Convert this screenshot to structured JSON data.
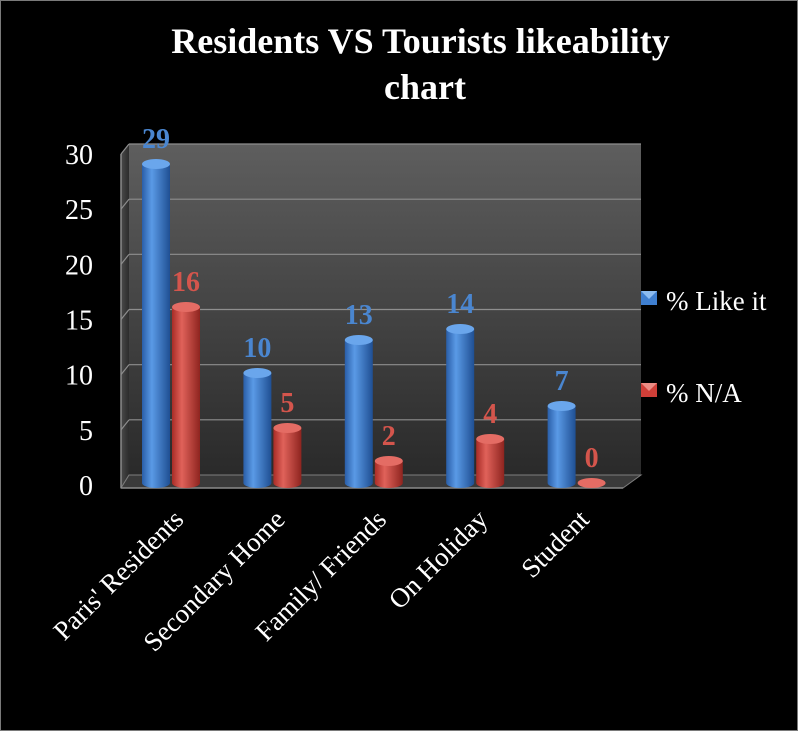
{
  "chart_data": {
    "type": "bar",
    "title": "Residents VS Tourists likeability chart",
    "title_lines": [
      "Residents VS Tourists likeability",
      "chart"
    ],
    "categories": [
      "Paris' Residents",
      "Secondary Home",
      "Family/ Friends",
      "On Holiday",
      "Student"
    ],
    "series": [
      {
        "name": "% Like it",
        "values": [
          29,
          10,
          13,
          14,
          7
        ],
        "color": "#3f7fd0",
        "label_color": "#4a86d0"
      },
      {
        "name": "% N/A",
        "values": [
          16,
          5,
          2,
          4,
          0
        ],
        "color": "#cf3f38",
        "label_color": "#d4554c"
      }
    ],
    "ylim": [
      0,
      30
    ],
    "yticks": [
      0,
      5,
      10,
      15,
      20,
      25,
      30
    ],
    "xlabel": "",
    "ylabel": "",
    "grid": true,
    "legend_position": "right",
    "style": "3d-cylinder"
  }
}
